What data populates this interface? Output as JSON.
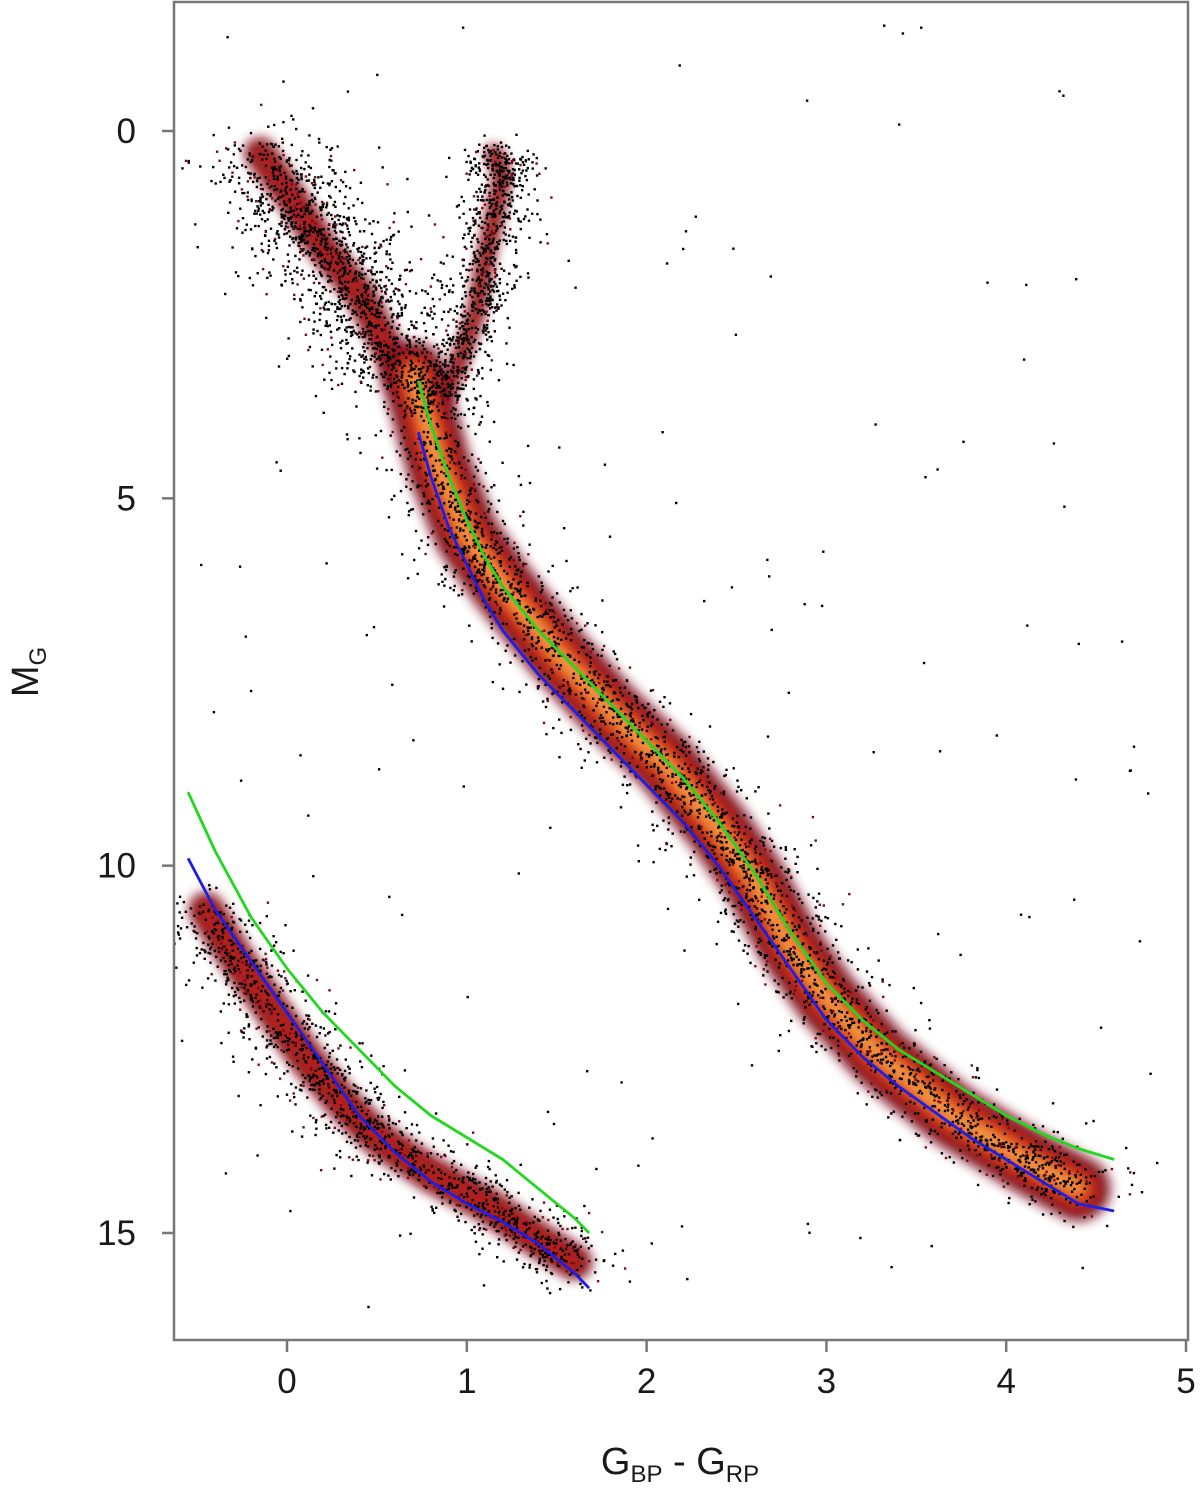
{
  "chart_data": {
    "type": "scatter",
    "title": "",
    "xlabel": {
      "main": "G",
      "sub1": "BP",
      "mid": " - G",
      "sub2": "RP"
    },
    "ylabel": {
      "main": "M",
      "sub": "G"
    },
    "xlim": [
      -0.63,
      5.0
    ],
    "ylim": [
      16.45,
      -1.75
    ],
    "y_inverted": true,
    "grid": false,
    "legend": "none",
    "x_ticks": [
      {
        "value": 0,
        "label": "0"
      },
      {
        "value": 1,
        "label": "1"
      },
      {
        "value": 2,
        "label": "2"
      },
      {
        "value": 3,
        "label": "3"
      },
      {
        "value": 4,
        "label": "4"
      },
      {
        "value": 5,
        "label": "5"
      }
    ],
    "y_ticks": [
      {
        "value": 0,
        "label": "0"
      },
      {
        "value": 5,
        "label": "5"
      },
      {
        "value": 10,
        "label": "10"
      },
      {
        "value": 15,
        "label": "15"
      }
    ],
    "density": {
      "description_colormap": [
        "#000000",
        "#7a0a1a",
        "#b3201a",
        "#d9431a",
        "#ee7a2a",
        "#f7b55a",
        "#fde6a8"
      ],
      "main_sequence_ridge": [
        [
          0.7,
          3.3
        ],
        [
          0.85,
          4.6
        ],
        [
          1.0,
          5.5
        ],
        [
          1.2,
          6.2
        ],
        [
          1.5,
          7.1
        ],
        [
          1.8,
          7.9
        ],
        [
          2.1,
          8.6
        ],
        [
          2.4,
          9.5
        ],
        [
          2.6,
          10.2
        ],
        [
          2.8,
          11.1
        ],
        [
          3.0,
          11.8
        ],
        [
          3.3,
          12.6
        ],
        [
          3.7,
          13.4
        ],
        [
          4.1,
          14.0
        ],
        [
          4.4,
          14.4
        ]
      ],
      "turnoff_region": [
        [
          -0.15,
          0.3
        ],
        [
          0.05,
          1.0
        ],
        [
          0.2,
          1.6
        ],
        [
          0.4,
          2.2
        ],
        [
          0.55,
          2.9
        ],
        [
          0.65,
          3.4
        ]
      ],
      "giant_branch": [
        [
          0.85,
          3.7
        ],
        [
          0.95,
          3.2
        ],
        [
          1.05,
          2.5
        ],
        [
          1.1,
          1.8
        ],
        [
          1.15,
          1.2
        ],
        [
          1.2,
          0.6
        ],
        [
          1.15,
          0.3
        ]
      ],
      "white_dwarf_ridge": [
        [
          -0.45,
          10.6
        ],
        [
          -0.3,
          11.2
        ],
        [
          -0.1,
          11.9
        ],
        [
          0.1,
          12.6
        ],
        [
          0.3,
          13.2
        ],
        [
          0.5,
          13.7
        ],
        [
          0.8,
          14.2
        ],
        [
          1.1,
          14.6
        ],
        [
          1.4,
          15.1
        ],
        [
          1.6,
          15.4
        ]
      ]
    },
    "series": [
      {
        "color": "#22d81f",
        "x": [
          0.73,
          0.8,
          0.9,
          1.0,
          1.1,
          1.2,
          1.4,
          1.6,
          1.8,
          2.0,
          2.2,
          2.4,
          2.6,
          2.8,
          3.0,
          3.2,
          3.4,
          3.6,
          3.8,
          4.0,
          4.2,
          4.4,
          4.6
        ],
        "y": [
          3.4,
          4.0,
          4.7,
          5.3,
          5.8,
          6.2,
          6.8,
          7.3,
          7.8,
          8.3,
          8.8,
          9.4,
          10.1,
          10.9,
          11.6,
          12.1,
          12.5,
          12.8,
          13.1,
          13.4,
          13.65,
          13.85,
          14.0
        ]
      },
      {
        "color": "#1e1ee6",
        "x": [
          0.73,
          0.8,
          0.9,
          1.0,
          1.1,
          1.2,
          1.4,
          1.6,
          1.8,
          2.0,
          2.2,
          2.4,
          2.6,
          2.8,
          3.0,
          3.2,
          3.4,
          3.6,
          3.8,
          4.0,
          4.2,
          4.4,
          4.6
        ],
        "y": [
          4.1,
          4.7,
          5.4,
          5.9,
          6.4,
          6.8,
          7.4,
          7.9,
          8.4,
          8.9,
          9.4,
          10.0,
          10.7,
          11.4,
          12.1,
          12.6,
          13.0,
          13.35,
          13.7,
          14.0,
          14.3,
          14.6,
          14.7
        ]
      },
      {
        "color": "#22d81f",
        "x": [
          -0.55,
          -0.4,
          -0.2,
          0.0,
          0.2,
          0.4,
          0.6,
          0.8,
          1.0,
          1.2,
          1.4,
          1.6,
          1.68
        ],
        "y": [
          9.0,
          9.8,
          10.7,
          11.4,
          12.0,
          12.5,
          13.0,
          13.4,
          13.7,
          14.0,
          14.4,
          14.8,
          15.0
        ]
      },
      {
        "color": "#1e1ee6",
        "x": [
          -0.55,
          -0.4,
          -0.2,
          0.0,
          0.2,
          0.4,
          0.6,
          0.8,
          1.0,
          1.2,
          1.4,
          1.6,
          1.68
        ],
        "y": [
          9.9,
          10.6,
          11.3,
          12.0,
          12.7,
          13.4,
          13.9,
          14.3,
          14.6,
          14.85,
          15.15,
          15.55,
          15.75
        ]
      }
    ]
  }
}
